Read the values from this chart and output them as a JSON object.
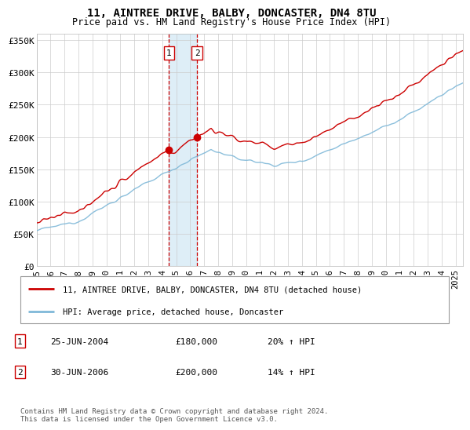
{
  "title": "11, AINTREE DRIVE, BALBY, DONCASTER, DN4 8TU",
  "subtitle": "Price paid vs. HM Land Registry's House Price Index (HPI)",
  "legend_line1": "11, AINTREE DRIVE, BALBY, DONCASTER, DN4 8TU (detached house)",
  "legend_line2": "HPI: Average price, detached house, Doncaster",
  "sale1_date_label": "25-JUN-2004",
  "sale1_price_label": "£180,000",
  "sale1_hpi_label": "20% ↑ HPI",
  "sale2_date_label": "30-JUN-2006",
  "sale2_price_label": "£200,000",
  "sale2_hpi_label": "14% ↑ HPI",
  "footer": "Contains HM Land Registry data © Crown copyright and database right 2024.\nThis data is licensed under the Open Government Licence v3.0.",
  "sale1_year": 2004.48,
  "sale2_year": 2006.49,
  "sale1_price": 180000,
  "sale2_price": 200000,
  "hpi_color": "#7fb8d8",
  "price_color": "#cc0000",
  "shade_color": "#d0e8f5",
  "sale_marker_color": "#cc0000",
  "ylim": [
    0,
    360000
  ],
  "xlim_start": 1995,
  "xlim_end": 2025.5,
  "yticks": [
    0,
    50000,
    100000,
    150000,
    200000,
    250000,
    300000,
    350000
  ],
  "ytick_labels": [
    "£0",
    "£50K",
    "£100K",
    "£150K",
    "£200K",
    "£250K",
    "£300K",
    "£350K"
  ],
  "xticks": [
    1995,
    1996,
    1997,
    1998,
    1999,
    2000,
    2001,
    2002,
    2003,
    2004,
    2005,
    2006,
    2007,
    2008,
    2009,
    2010,
    2011,
    2012,
    2013,
    2014,
    2015,
    2016,
    2017,
    2018,
    2019,
    2020,
    2021,
    2022,
    2023,
    2024,
    2025
  ]
}
